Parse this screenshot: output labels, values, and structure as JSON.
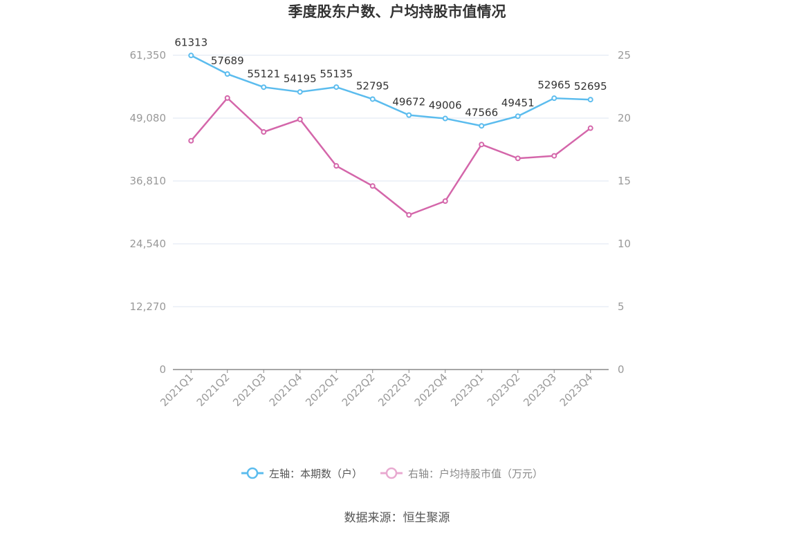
{
  "chart_data": {
    "type": "line",
    "title": "季度股东户数、户均持股市值情况",
    "categories": [
      "2021Q1",
      "2021Q2",
      "2021Q3",
      "2021Q4",
      "2022Q1",
      "2022Q2",
      "2022Q3",
      "2022Q4",
      "2023Q1",
      "2023Q2",
      "2023Q3",
      "2023Q4"
    ],
    "left_axis": {
      "ticks": [
        "61,350",
        "49,080",
        "36,810",
        "24,540",
        "12,270",
        "0"
      ],
      "ylim": [
        0,
        61350
      ]
    },
    "right_axis": {
      "ticks": [
        "25",
        "20",
        "15",
        "10",
        "5",
        "0"
      ],
      "ylim": [
        0,
        25
      ]
    },
    "series": [
      {
        "name": "左轴：本期数（户）",
        "axis": "left",
        "color": "#5bbcee",
        "values": [
          61313,
          57689,
          55121,
          54195,
          55135,
          52795,
          49672,
          49006,
          47566,
          49451,
          52965,
          52695
        ],
        "labels": [
          "61313",
          "57689",
          "55121",
          "54195",
          "55135",
          "52795",
          "49672",
          "49006",
          "47566",
          "49451",
          "52965",
          "52695"
        ]
      },
      {
        "name": "右轴：户均持股市值（万元）",
        "axis": "right",
        "color": "#d466aa",
        "values": [
          18.2,
          21.6,
          18.9,
          19.9,
          16.2,
          14.6,
          12.3,
          13.4,
          17.9,
          16.8,
          17.0,
          19.2
        ]
      }
    ],
    "legend_position": "bottom",
    "grid": true,
    "source": "数据来源：恒生聚源"
  }
}
